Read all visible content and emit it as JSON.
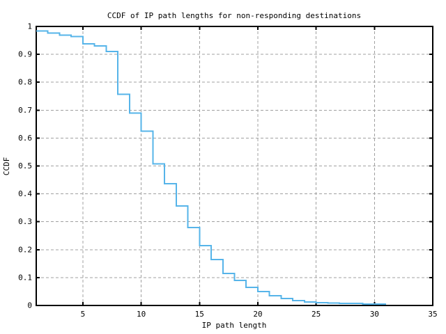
{
  "chart_data": {
    "type": "line",
    "style": "step-post",
    "title": "CCDF of IP path lengths for non-responding destinations",
    "xlabel": "IP path length",
    "ylabel": "CCDF",
    "xlim": [
      1,
      35
    ],
    "ylim": [
      0,
      1
    ],
    "xticks": [
      5,
      10,
      15,
      20,
      25,
      30,
      35
    ],
    "xtick_labels": [
      "5",
      "10",
      "15",
      "20",
      "25",
      "30",
      "35"
    ],
    "yticks": [
      0,
      0.1,
      0.2,
      0.3,
      0.4,
      0.5,
      0.6,
      0.7,
      0.8,
      0.9,
      1
    ],
    "ytick_labels": [
      "0",
      "0.1",
      "0.2",
      "0.3",
      "0.4",
      "0.5",
      "0.6",
      "0.7",
      "0.8",
      "0.9",
      "1"
    ],
    "grid": true,
    "legend": "none",
    "colors": {
      "line": "#56B4E9",
      "grid": "#a0a0a0",
      "axis": "#000000",
      "background": "#ffffff"
    },
    "series": [
      {
        "name": "CCDF",
        "color": "#56B4E9",
        "x": [
          1,
          2,
          3,
          4,
          5,
          6,
          7,
          8,
          9,
          10,
          11,
          12,
          13,
          14,
          15,
          16,
          17,
          18,
          19,
          20,
          21,
          22,
          23,
          24,
          25,
          26,
          27,
          28,
          29,
          30
        ],
        "y": [
          0.984,
          0.976,
          0.969,
          0.964,
          0.938,
          0.93,
          0.91,
          0.757,
          0.69,
          0.625,
          0.508,
          0.436,
          0.356,
          0.279,
          0.214,
          0.164,
          0.115,
          0.09,
          0.065,
          0.05,
          0.035,
          0.025,
          0.0175,
          0.0125,
          0.0095,
          0.009,
          0.0075,
          0.007,
          0.005,
          0.0045
        ],
        "x_end": 31
      }
    ]
  }
}
